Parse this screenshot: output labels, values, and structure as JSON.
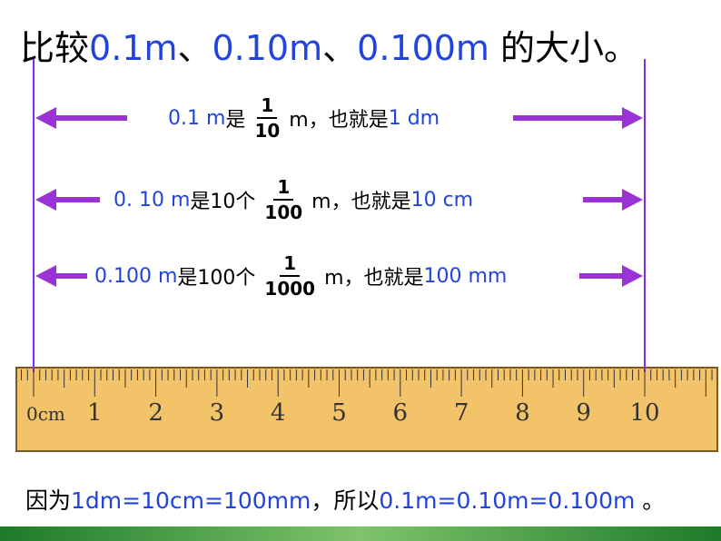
{
  "title": [
    "比较",
    "0.1m",
    "、",
    "0.10m",
    "、",
    "0.100m",
    " 的大小。"
  ],
  "rows": [
    {
      "value": "0.1 m",
      "text": "是",
      "numerator": "1",
      "denominator": "10",
      "tail": "m，也就是",
      "unit": "1 dm"
    },
    {
      "value": "0. 10 m",
      "text": "是10个",
      "numerator": "1",
      "denominator": "100",
      "tail": "m，也就是",
      "unit": "10 cm"
    },
    {
      "value": "0.100 m",
      "text": "是100个",
      "numerator": "1",
      "denominator": "1000",
      "tail": "m，也就是",
      "unit": "100 mm"
    }
  ],
  "ruler": {
    "labels": [
      "0cm",
      "1",
      "2",
      "3",
      "4",
      "5",
      "6",
      "7",
      "8",
      "9",
      "10"
    ]
  },
  "conclusion": [
    "因为",
    "1dm=10cm=100mm",
    "，所以",
    "0.1m=0.10m=0.100m",
    " 。"
  ]
}
